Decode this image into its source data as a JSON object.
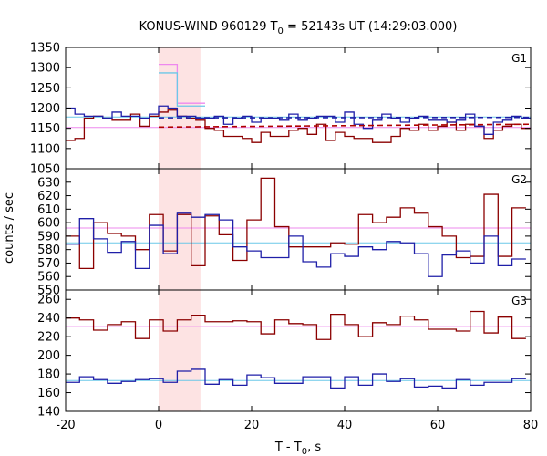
{
  "chart_data": {
    "type": "line",
    "title": "KONUS-WIND 960129 T",
    "title_sub": "0",
    "title_rest": " = 52143s UT (14:29:03.000)",
    "xlabel": "T - T",
    "xlabel_sub": "0",
    "xlabel_rest": ", s",
    "ylabel": "counts / sec",
    "xlim": [
      -20,
      80
    ],
    "x_ticks": [
      -20,
      0,
      20,
      40,
      60,
      80
    ],
    "highlight_interval": [
      0,
      9
    ],
    "grid": false,
    "colors": {
      "dark_red": "#8b0000",
      "dark_blue": "#1f1fa8",
      "light_blue": "#6cc8e8",
      "pink": "#ee88ee",
      "shade": "#fde3e3",
      "red_fit": "#b00000",
      "blue_fit": "#1f1fa8"
    },
    "panels": [
      {
        "name": "G1",
        "ylim": [
          1050,
          1350
        ],
        "y_ticks": [
          1050,
          1100,
          1150,
          1200,
          1250,
          1300,
          1350
        ],
        "step_edges": [
          -20,
          -18,
          -16,
          -14,
          -12,
          -10,
          -8,
          -6,
          -4,
          -2,
          0,
          2,
          4,
          6,
          8,
          10,
          12,
          14,
          16,
          18,
          20,
          22,
          24,
          26,
          28,
          30,
          32,
          34,
          36,
          38,
          40,
          42,
          44,
          46,
          48,
          50,
          52,
          54,
          56,
          58,
          60,
          62,
          64,
          66,
          68,
          70,
          72,
          74,
          76,
          78,
          80
        ],
        "series": [
          {
            "color": "dark_red",
            "values": [
              1120,
              1125,
              1175,
              1180,
              1175,
              1170,
              1170,
              1185,
              1155,
              1180,
              1190,
              1195,
              1180,
              1175,
              1170,
              1150,
              1145,
              1130,
              1130,
              1125,
              1115,
              1140,
              1130,
              1130,
              1145,
              1150,
              1135,
              1160,
              1120,
              1140,
              1130,
              1125,
              1125,
              1115,
              1115,
              1130,
              1150,
              1145,
              1160,
              1145,
              1155,
              1165,
              1145,
              1160,
              1155,
              1125,
              1145,
              1155,
              1160,
              1150
            ]
          },
          {
            "color": "dark_blue",
            "values": [
              1200,
              1185,
              1180,
              1180,
              1175,
              1190,
              1180,
              1180,
              1175,
              1185,
              1205,
              1200,
              1180,
              1180,
              1175,
              1175,
              1180,
              1160,
              1175,
              1180,
              1165,
              1175,
              1175,
              1170,
              1185,
              1170,
              1175,
              1180,
              1180,
              1165,
              1190,
              1160,
              1150,
              1170,
              1185,
              1175,
              1165,
              1175,
              1180,
              1170,
              1170,
              1165,
              1170,
              1185,
              1155,
              1135,
              1165,
              1170,
              1180,
              1175
            ]
          },
          {
            "color": "pink",
            "values": [
              null,
              null,
              null,
              null,
              null,
              null,
              null,
              null,
              null,
              null,
              1308,
              1308,
              1212,
              1212,
              1212,
              null,
              null,
              null,
              null,
              null,
              null,
              null,
              null,
              null,
              null,
              null,
              null,
              null,
              null,
              null,
              null,
              null,
              null,
              null,
              null,
              null,
              null,
              null,
              null,
              null,
              null,
              null,
              null,
              null,
              null,
              null,
              null,
              null,
              null,
              null
            ]
          },
          {
            "color": "light_blue",
            "values": [
              null,
              null,
              null,
              null,
              null,
              null,
              null,
              null,
              null,
              null,
              1287,
              1287,
              1205,
              1205,
              1205,
              null,
              null,
              null,
              null,
              null,
              null,
              null,
              null,
              null,
              null,
              null,
              null,
              null,
              null,
              null,
              null,
              null,
              null,
              null,
              null,
              null,
              null,
              null,
              null,
              null,
              null,
              null,
              null,
              null,
              null,
              null,
              null,
              null,
              null,
              null
            ]
          }
        ],
        "reference_lines": [
          {
            "color": "pink",
            "y": 1152
          },
          {
            "color": "light_blue",
            "y": 1178
          }
        ],
        "fit_lines": [
          {
            "color": "red_fit",
            "x": [
              0,
              80
            ],
            "y": [
              1153,
              1160
            ]
          },
          {
            "color": "blue_fit",
            "x": [
              0,
              80
            ],
            "y": [
              1176,
              1177
            ]
          }
        ]
      },
      {
        "name": "G2",
        "ylim": [
          550,
          640
        ],
        "y_ticks": [
          550,
          560,
          570,
          580,
          590,
          600,
          610,
          620,
          630
        ],
        "step_edges": [
          -20,
          -17,
          -14,
          -11,
          -8,
          -5,
          -2,
          1,
          4,
          7,
          10,
          13,
          16,
          19,
          22,
          25,
          28,
          31,
          34,
          37,
          40,
          43,
          46,
          49,
          52,
          55,
          58,
          61,
          64,
          67,
          70,
          73,
          76,
          79
        ],
        "series": [
          {
            "color": "dark_red",
            "values": [
              590,
              566,
              600,
              592,
              590,
              580,
              606,
              579,
              606,
              568,
              605,
              591,
              572,
              602,
              633,
              597,
              582,
              582,
              582,
              585,
              584,
              606,
              600,
              604,
              611,
              607,
              597,
              590,
              574,
              575,
              621,
              575,
              611
            ]
          },
          {
            "color": "dark_blue",
            "values": [
              584,
              603,
              588,
              578,
              586,
              566,
              598,
              577,
              607,
              604,
              606,
              602,
              582,
              579,
              574,
              574,
              590,
              571,
              567,
              577,
              575,
              582,
              580,
              586,
              585,
              577,
              560,
              576,
              579,
              570,
              590,
              568,
              573
            ]
          }
        ],
        "reference_lines": [
          {
            "color": "pink",
            "y": 596
          },
          {
            "color": "light_blue",
            "y": 585
          }
        ]
      },
      {
        "name": "G3",
        "ylim": [
          140,
          270
        ],
        "y_ticks": [
          140,
          160,
          180,
          200,
          220,
          240,
          260
        ],
        "step_edges": [
          -20,
          -17,
          -14,
          -11,
          -8,
          -5,
          -2,
          1,
          4,
          7,
          10,
          13,
          16,
          19,
          22,
          25,
          28,
          31,
          34,
          37,
          40,
          43,
          46,
          49,
          52,
          55,
          58,
          61,
          64,
          67,
          70,
          73,
          76,
          79
        ],
        "series": [
          {
            "color": "dark_red",
            "values": [
              240,
              238,
              227,
              233,
              236,
              218,
              238,
              226,
              238,
              243,
              236,
              236,
              237,
              236,
              223,
              238,
              234,
              233,
              217,
              244,
              233,
              220,
              235,
              233,
              242,
              238,
              228,
              228,
              226,
              247,
              224,
              241,
              218
            ]
          },
          {
            "color": "dark_blue",
            "values": [
              171,
              177,
              174,
              170,
              172,
              174,
              175,
              171,
              183,
              185,
              169,
              174,
              168,
              179,
              176,
              170,
              170,
              177,
              177,
              165,
              177,
              168,
              180,
              172,
              175,
              166,
              167,
              165,
              174,
              168,
              171,
              171,
              175
            ]
          }
        ],
        "reference_lines": [
          {
            "color": "pink",
            "y": 231
          },
          {
            "color": "light_blue",
            "y": 173
          }
        ]
      }
    ]
  }
}
